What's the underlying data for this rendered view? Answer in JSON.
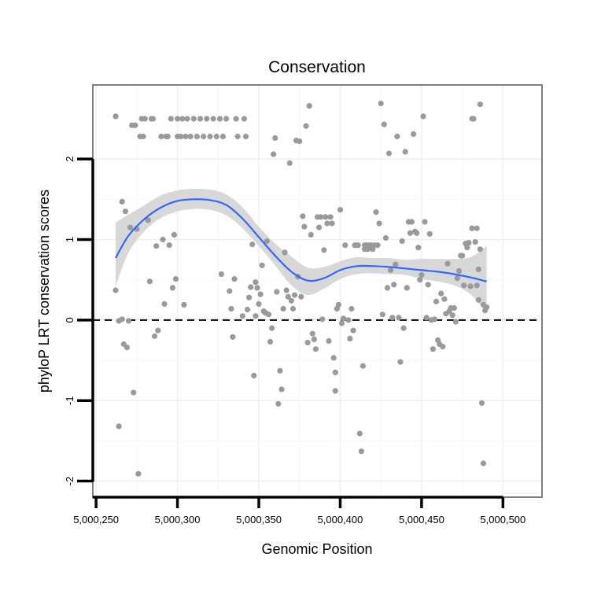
{
  "chart_data": {
    "type": "scatter",
    "title": "Conservation",
    "xlabel": "Genomic Position",
    "ylabel": "phyloP LRT conservation scores",
    "xlim": [
      5000248,
      5000524
    ],
    "ylim": [
      -2.2,
      2.92
    ],
    "x_ticks": [
      5000250,
      5000300,
      5000350,
      5000400,
      5000450,
      5000500
    ],
    "x_tick_labels": [
      "5,000,250",
      "5,000,300",
      "5,000,350",
      "5,000,400",
      "5,000,450",
      "5,000,500"
    ],
    "y_ticks": [
      -2,
      -1,
      0,
      1,
      2
    ],
    "y_tick_labels": [
      "-2",
      "-1",
      "0",
      "1",
      "2"
    ],
    "grid": true,
    "reference_line": {
      "y": 0,
      "style": "dashed",
      "color": "#000000"
    },
    "colors": {
      "points": "#9a9a9a",
      "smooth": "#3366ff",
      "band": "#d4d4d4",
      "panel_border": "#7f7f7f"
    },
    "series": [
      {
        "values": [
          [
            5000262,
            2.53
          ],
          [
            5000262,
            0.37
          ],
          [
            5000264,
            -1.32
          ],
          [
            5000264,
            -0.01
          ],
          [
            5000266,
            1.47
          ],
          [
            5000266,
            0.01
          ],
          [
            5000267,
            -0.3
          ],
          [
            5000268,
            1.35
          ],
          [
            5000269,
            -0.34
          ],
          [
            5000270,
            -0.01
          ],
          [
            5000271,
            1.15
          ],
          [
            5000272,
            2.42
          ],
          [
            5000273,
            -0.9
          ],
          [
            5000274,
            2.42
          ],
          [
            5000275,
            1.13
          ],
          [
            5000276,
            -1.91
          ],
          [
            5000277,
            2.28
          ],
          [
            5000278,
            2.5
          ],
          [
            5000279,
            2.28
          ],
          [
            5000280,
            2.5
          ],
          [
            5000282,
            1.24
          ],
          [
            5000283,
            0.48
          ],
          [
            5000284,
            2.5
          ],
          [
            5000285,
            2.5
          ],
          [
            5000286,
            -0.2
          ],
          [
            5000287,
            0.92
          ],
          [
            5000288,
            -0.13
          ],
          [
            5000290,
            2.28
          ],
          [
            5000291,
            1.0
          ],
          [
            5000292,
            0.2
          ],
          [
            5000293,
            2.28
          ],
          [
            5000294,
            2.28
          ],
          [
            5000295,
            0.93
          ],
          [
            5000296,
            2.5
          ],
          [
            5000297,
            0.4
          ],
          [
            5000298,
            1.06
          ],
          [
            5000299,
            0.51
          ],
          [
            5000300,
            2.5
          ],
          [
            5000300,
            2.28
          ],
          [
            5000302,
            2.28
          ],
          [
            5000303,
            2.5
          ],
          [
            5000304,
            0.19
          ],
          [
            5000305,
            2.28
          ],
          [
            5000306,
            2.5
          ],
          [
            5000308,
            2.28
          ],
          [
            5000310,
            2.5
          ],
          [
            5000312,
            2.28
          ],
          [
            5000314,
            2.5
          ],
          [
            5000316,
            2.28
          ],
          [
            5000318,
            2.5
          ],
          [
            5000320,
            2.28
          ],
          [
            5000322,
            2.5
          ],
          [
            5000324,
            2.28
          ],
          [
            5000326,
            2.5
          ],
          [
            5000327,
            0.57
          ],
          [
            5000328,
            2.28
          ],
          [
            5000330,
            2.5
          ],
          [
            5000332,
            0.36
          ],
          [
            5000333,
            0.14
          ],
          [
            5000334,
            -0.21
          ],
          [
            5000335,
            0.51
          ],
          [
            5000336,
            2.5
          ],
          [
            5000337,
            2.28
          ],
          [
            5000340,
            0.05
          ],
          [
            5000341,
            2.5
          ],
          [
            5000342,
            2.28
          ],
          [
            5000343,
            0.13
          ],
          [
            5000344,
            0.28
          ],
          [
            5000345,
            0.41
          ],
          [
            5000346,
            0.94
          ],
          [
            5000347,
            -0.69
          ],
          [
            5000348,
            0.47
          ],
          [
            5000348,
            0.05
          ],
          [
            5000349,
            0.4
          ],
          [
            5000350,
            0.2
          ],
          [
            5000351,
            0.32
          ],
          [
            5000352,
            0.68
          ],
          [
            5000353,
            0.11
          ],
          [
            5000354,
            0.09
          ],
          [
            5000355,
            0.98
          ],
          [
            5000356,
            0.07
          ],
          [
            5000357,
            -0.27
          ],
          [
            5000358,
            -0.1
          ],
          [
            5000359,
            2.06
          ],
          [
            5000360,
            2.26
          ],
          [
            5000361,
            0.35
          ],
          [
            5000362,
            -1.04
          ],
          [
            5000363,
            -0.63
          ],
          [
            5000364,
            -0.86
          ],
          [
            5000365,
            0.14
          ],
          [
            5000366,
            0.84
          ],
          [
            5000367,
            0.37
          ],
          [
            5000368,
            0.29
          ],
          [
            5000369,
            1.95
          ],
          [
            5000370,
            0.24
          ],
          [
            5000371,
            0.14
          ],
          [
            5000372,
            0.31
          ],
          [
            5000373,
            2.23
          ],
          [
            5000374,
            0.54
          ],
          [
            5000375,
            2.22
          ],
          [
            5000376,
            0.29
          ],
          [
            5000377,
            1.29
          ],
          [
            5000378,
            1.16
          ],
          [
            5000379,
            2.41
          ],
          [
            5000380,
            -0.28
          ],
          [
            5000381,
            2.66
          ],
          [
            5000382,
            1.06
          ],
          [
            5000383,
            -0.17
          ],
          [
            5000384,
            -0.24
          ],
          [
            5000385,
            -0.36
          ],
          [
            5000386,
            1.28
          ],
          [
            5000387,
            1.15
          ],
          [
            5000388,
            1.28
          ],
          [
            5000389,
            0.01
          ],
          [
            5000390,
            0.87
          ],
          [
            5000391,
            1.28
          ],
          [
            5000392,
            1.2
          ],
          [
            5000393,
            -0.26
          ],
          [
            5000394,
            1.28
          ],
          [
            5000395,
            1.2
          ],
          [
            5000396,
            -0.47
          ],
          [
            5000397,
            -0.65
          ],
          [
            5000397,
            -0.88
          ],
          [
            5000398,
            0.14
          ],
          [
            5000399,
            0.19
          ],
          [
            5000400,
            1.37
          ],
          [
            5000401,
            -0.04
          ],
          [
            5000402,
            0.02
          ],
          [
            5000403,
            0.93
          ],
          [
            5000405,
            0.0
          ],
          [
            5000406,
            -0.23
          ],
          [
            5000407,
            0.14
          ],
          [
            5000408,
            -0.13
          ],
          [
            5000409,
            0.93
          ],
          [
            5000410,
            0.93
          ],
          [
            5000411,
            0.93
          ],
          [
            5000412,
            -1.41
          ],
          [
            5000413,
            -1.63
          ],
          [
            5000414,
            -0.57
          ],
          [
            5000415,
            0.93
          ],
          [
            5000415,
            0.88
          ],
          [
            5000416,
            0.93
          ],
          [
            5000417,
            0.88
          ],
          [
            5000418,
            0.93
          ],
          [
            5000419,
            0.93
          ],
          [
            5000420,
            0.88
          ],
          [
            5000421,
            0.93
          ],
          [
            5000422,
            1.34
          ],
          [
            5000423,
            0.93
          ],
          [
            5000424,
            1.2
          ],
          [
            5000425,
            2.69
          ],
          [
            5000426,
            0.07
          ],
          [
            5000427,
            2.43
          ],
          [
            5000428,
            1.02
          ],
          [
            5000429,
            0.4
          ],
          [
            5000430,
            2.07
          ],
          [
            5000431,
            0.62
          ],
          [
            5000432,
            0.03
          ],
          [
            5000433,
            0.44
          ],
          [
            5000434,
            0.69
          ],
          [
            5000435,
            2.28
          ],
          [
            5000436,
            0.03
          ],
          [
            5000437,
            -0.52
          ],
          [
            5000438,
            0.98
          ],
          [
            5000439,
            -0.1
          ],
          [
            5000440,
            2.09
          ],
          [
            5000441,
            0.4
          ],
          [
            5000442,
            1.22
          ],
          [
            5000443,
            1.08
          ],
          [
            5000444,
            1.22
          ],
          [
            5000445,
            2.31
          ],
          [
            5000446,
            1.1
          ],
          [
            5000447,
            1.08
          ],
          [
            5000448,
            0.9
          ],
          [
            5000449,
            0.5
          ],
          [
            5000450,
            0.56
          ],
          [
            5000451,
            2.53
          ],
          [
            5000452,
            1.22
          ],
          [
            5000453,
            0.03
          ],
          [
            5000454,
            0.44
          ],
          [
            5000455,
            1.07
          ],
          [
            5000456,
            0.0
          ],
          [
            5000457,
            -0.36
          ],
          [
            5000458,
            0.01
          ],
          [
            5000459,
            0.23
          ],
          [
            5000460,
            -0.25
          ],
          [
            5000461,
            -0.3
          ],
          [
            5000462,
            0.33
          ],
          [
            5000463,
            -0.33
          ],
          [
            5000464,
            0.26
          ],
          [
            5000465,
            0.08
          ],
          [
            5000466,
            0.7
          ],
          [
            5000467,
            0.11
          ],
          [
            5000468,
            0.15
          ],
          [
            5000469,
            0.06
          ],
          [
            5000470,
            0.15
          ],
          [
            5000471,
            -0.02
          ],
          [
            5000472,
            0.52
          ],
          [
            5000473,
            0.61
          ],
          [
            5000474,
            0.8
          ],
          [
            5000475,
            0.8
          ],
          [
            5000476,
            0.43
          ],
          [
            5000477,
            0.95
          ],
          [
            5000478,
            0.9
          ],
          [
            5000479,
            0.96
          ],
          [
            5000480,
            0.42
          ],
          [
            5000481,
            2.5
          ],
          [
            5000481,
            1.14
          ],
          [
            5000482,
            2.5
          ],
          [
            5000483,
            0.97
          ],
          [
            5000484,
            0.43
          ],
          [
            5000485,
            0.25
          ],
          [
            5000486,
            2.68
          ],
          [
            5000487,
            -1.03
          ],
          [
            5000488,
            -1.78
          ],
          [
            5000488,
            0.19
          ],
          [
            5000489,
            0.12
          ],
          [
            5000490,
            0.16
          ],
          [
            5000484,
            1.14
          ],
          [
            5000486,
            0.88
          ],
          [
            5000485,
            0.63
          ]
        ]
      }
    ],
    "smooth": {
      "x": [
        5000262,
        5000270,
        5000280,
        5000290,
        5000300,
        5000310,
        5000320,
        5000330,
        5000340,
        5000350,
        5000360,
        5000370,
        5000380,
        5000390,
        5000400,
        5000410,
        5000420,
        5000430,
        5000440,
        5000450,
        5000460,
        5000470,
        5000480,
        5000490
      ],
      "y": [
        0.77,
        1.05,
        1.26,
        1.4,
        1.48,
        1.5,
        1.49,
        1.43,
        1.26,
        1.03,
        0.8,
        0.6,
        0.49,
        0.52,
        0.62,
        0.67,
        0.67,
        0.66,
        0.64,
        0.62,
        0.6,
        0.57,
        0.53,
        0.48
      ],
      "lower": [
        0.42,
        0.84,
        1.11,
        1.27,
        1.35,
        1.38,
        1.37,
        1.3,
        1.14,
        0.92,
        0.68,
        0.43,
        0.31,
        0.39,
        0.51,
        0.57,
        0.58,
        0.57,
        0.56,
        0.51,
        0.48,
        0.43,
        0.32,
        0.1
      ],
      "upper": [
        1.21,
        1.31,
        1.43,
        1.55,
        1.61,
        1.63,
        1.62,
        1.56,
        1.4,
        1.16,
        0.95,
        0.79,
        0.65,
        0.66,
        0.73,
        0.78,
        0.77,
        0.77,
        0.75,
        0.76,
        0.76,
        0.76,
        0.78,
        0.92
      ]
    }
  }
}
